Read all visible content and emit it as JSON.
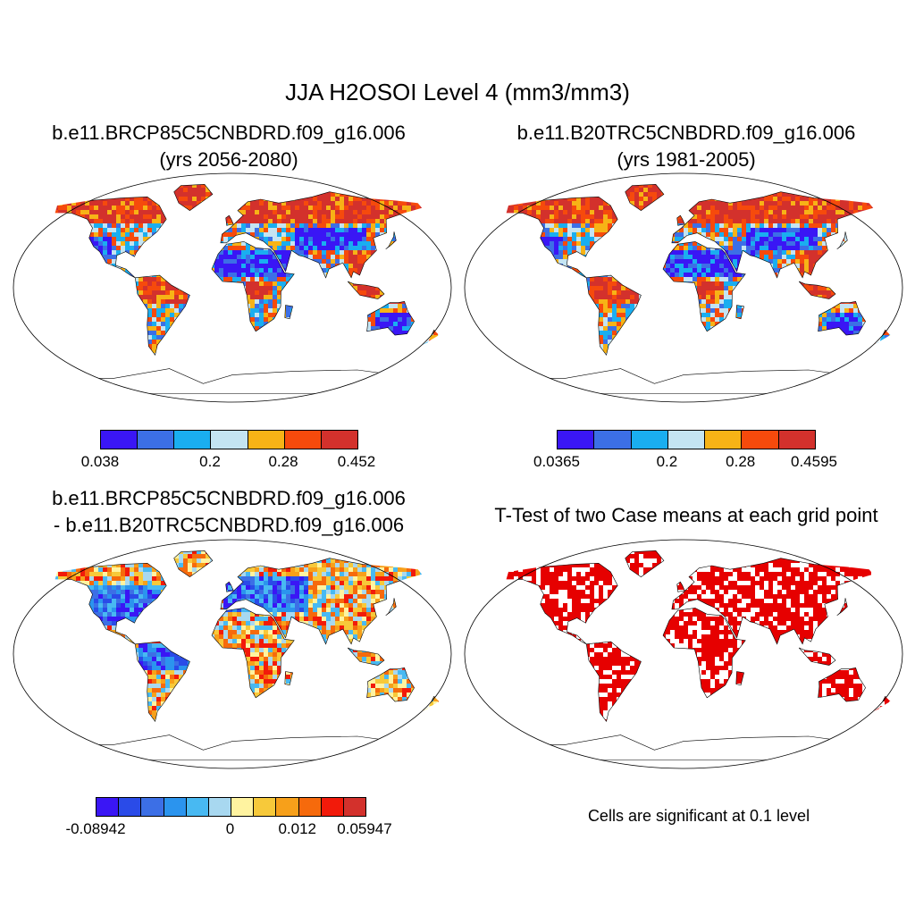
{
  "main_title": "JJA H2OSOI Level 4 (mm3/mm3)",
  "panels": [
    {
      "title_line1": "b.e11.BRCP85C5CNBDRD.f09_g16.006",
      "title_line2": "(yrs 2056-2080)",
      "colorbar": {
        "colors": [
          "#3a16f5",
          "#3c6fe6",
          "#1aaef0",
          "#c4e4f2",
          "#f7b316",
          "#f64a0c",
          "#d3312c"
        ],
        "labels": [
          "0.038",
          "0.2",
          "0.28",
          "0.452"
        ],
        "label_positions": [
          0,
          3,
          5,
          7
        ]
      }
    },
    {
      "title_line1": "b.e11.B20TRC5CNBDRD.f09_g16.006",
      "title_line2": "(yrs 1981-2005)",
      "colorbar": {
        "colors": [
          "#3a16f5",
          "#3c6fe6",
          "#1aaef0",
          "#c4e4f2",
          "#f7b316",
          "#f64a0c",
          "#d3312c"
        ],
        "labels": [
          "0.0365",
          "0.2",
          "0.28",
          "0.4595"
        ],
        "label_positions": [
          0,
          3,
          5,
          7
        ]
      }
    },
    {
      "title_line1": "b.e11.BRCP85C5CNBDRD.f09_g16.006",
      "title_line2": "- b.e11.B20TRC5CNBDRD.f09_g16.006",
      "colorbar": {
        "colors": [
          "#3a16f5",
          "#2a4be8",
          "#3c6fe6",
          "#2b94ee",
          "#48b9f2",
          "#a8d8f0",
          "#fff3a0",
          "#f7c93a",
          "#f7a01a",
          "#f66a0c",
          "#f21a0a",
          "#d3312c"
        ],
        "labels": [
          "-0.08942",
          "0",
          "0.012",
          "0.05947"
        ],
        "label_positions": [
          0,
          6,
          9,
          12
        ]
      }
    },
    {
      "title_line1": "T-Test of two Case means at each grid point",
      "title_line2": "",
      "note": "Cells are significant at 0.1 level"
    }
  ],
  "map_colors": {
    "wet": "#d3312c",
    "mid_high": "#f64a0c",
    "mid": "#f7b316",
    "light": "#c4e4f2",
    "cyan": "#1aaef0",
    "blue": "#3c6fe6",
    "dry": "#3a16f5",
    "sig": "#e60000"
  }
}
